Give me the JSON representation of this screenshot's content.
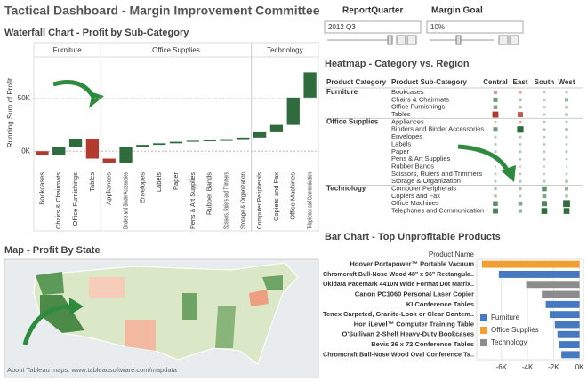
{
  "header": {
    "title": "Tactical Dashboard - Margin Improvement Committee"
  },
  "controls": [
    {
      "label": "ReportQuarter",
      "value": "2012 Q3"
    },
    {
      "label": "Margin Goal",
      "value": "10%"
    }
  ],
  "chart_data": [
    {
      "type": "waterfall",
      "title": "Waterfall Chart - Profit by Sub-Category",
      "y_label": "Running Sum of Profit",
      "groups": [
        {
          "name": "Furniture",
          "categories": [
            "Bookcases",
            "Chairs & Chairmats",
            "Office Furnishings",
            "Tables"
          ],
          "values": [
            -4,
            8,
            8,
            -19
          ]
        },
        {
          "name": "Office Supplies",
          "categories": [
            "Appliances",
            "Binders and Binder Accessories",
            "Envelopes",
            "Labels",
            "Paper",
            "Pens & Art Supplies",
            "Rubber Bands",
            "Scissors, Rulers and Trimmers",
            "Storage & Organization"
          ],
          "values": [
            -4,
            15,
            2,
            1.5,
            1.5,
            1,
            0.3,
            0.4,
            2.3
          ]
        },
        {
          "name": "Technology",
          "categories": [
            "Computer Peripherals",
            "Copiers and Fax",
            "Office Machines",
            "Telephones and Communication"
          ],
          "values": [
            5,
            7,
            26,
            24
          ]
        }
      ],
      "ylim": [
        -15,
        88
      ],
      "yticks": [
        {
          "value": 0,
          "label": "0K"
        },
        {
          "value": 50,
          "label": "50K"
        }
      ],
      "color_positive": "#2f6b3c",
      "color_negative": "#b23a2e",
      "grid": true
    },
    {
      "type": "heatmap",
      "title": "Heatmap - Category vs. Region",
      "row_header": "Product Category",
      "subrow_header": "Product Sub-Category",
      "columns": [
        "Central",
        "East",
        "South",
        "West"
      ],
      "groups": [
        {
          "name": "Furniture",
          "categories": [
            "Bookcases",
            "Chairs & Chairmats",
            "Office Furnishings",
            "Tables"
          ],
          "values": [
            [
              -2,
              -1,
              0.3,
              0.5
            ],
            [
              4,
              1,
              0.5,
              2
            ],
            [
              3,
              1,
              0.5,
              1
            ],
            [
              -9,
              -6,
              0.5,
              1
            ]
          ]
        },
        {
          "name": "Office Supplies",
          "categories": [
            "Appliances",
            "Binders and Binder Accessories",
            "Envelopes",
            "Labels",
            "Paper",
            "Pens & Art Supplies",
            "Rubber Bands",
            "Scissors, Rulers and Trimmers",
            "Storage & Organization"
          ],
          "values": [
            [
              0.5,
              -1,
              0.5,
              0.5
            ],
            [
              4,
              10,
              0.5,
              1
            ],
            [
              0.5,
              0.5,
              0.3,
              0.5
            ],
            [
              0.5,
              0.3,
              0.3,
              0.3
            ],
            [
              0.5,
              0.5,
              0.3,
              0.5
            ],
            [
              0.3,
              0.3,
              0.3,
              0.3
            ],
            [
              0.1,
              0.1,
              0.1,
              0.1
            ],
            [
              0.3,
              0.2,
              0.1,
              0.3
            ],
            [
              0.5,
              0.5,
              0.5,
              1
            ]
          ]
        },
        {
          "name": "Technology",
          "categories": [
            "Computer Peripherals",
            "Copiers and Fax",
            "Office Machines",
            "Telephones and Communication"
          ],
          "values": [
            [
              1,
              1,
              5,
              2
            ],
            [
              1,
              0.5,
              3,
              1
            ],
            [
              5,
              3,
              6,
              12
            ],
            [
              6,
              2,
              8,
              8
            ]
          ]
        }
      ],
      "color_positive": "#2f6b3c",
      "color_negative": "#b23a2e"
    },
    {
      "type": "map",
      "title": "Map - Profit By State",
      "note": "About Tableau maps: www.tableausoftware.com/mapdata"
    },
    {
      "type": "bar",
      "orientation": "horizontal",
      "title": "Bar Chart - Top Unprofitable Products",
      "y_label": "Product Name",
      "categories": [
        "Hoover Portapower™ Portable Vacuum",
        "Chromcraft Bull-Nose Wood 48\" x 96\" Rectangula..",
        "Okidata Pacemark 4410N Wide Format Dot Matrix..",
        "Canon PC1060 Personal Laser Copier",
        "KI Conference Tables",
        "Tenex Carpeted, Granite-Look or Clear Contem..",
        "Hon iLevel™ Computer Training Table",
        "O'Sullivan 2-Shelf Heavy-Duty Bookcases",
        "Bevis 36 x 72 Conference Tables",
        "Chromcraft Bull-Nose Wood Oval Conference Ta.."
      ],
      "series": [
        {
          "name": "Furniture",
          "color": "#4679c0",
          "values": [
            null,
            -6.2,
            null,
            null,
            -2.6,
            -2.3,
            -1.9,
            -1.7,
            -1.6,
            -1.4
          ]
        },
        {
          "name": "Office Supplies",
          "color": "#f0a033",
          "values": [
            -7.5,
            null,
            null,
            null,
            null,
            null,
            null,
            null,
            null,
            null
          ]
        },
        {
          "name": "Technology",
          "color": "#8c8c8c",
          "values": [
            null,
            null,
            -4.1,
            -2.9,
            null,
            null,
            null,
            null,
            null,
            null
          ]
        }
      ],
      "xlim": [
        -7.9,
        0.3
      ],
      "xticks": [
        {
          "value": -6,
          "label": "-6K"
        },
        {
          "value": -4,
          "label": "-4K"
        },
        {
          "value": -2,
          "label": "-2K"
        },
        {
          "value": 0,
          "label": "0K"
        }
      ]
    }
  ]
}
